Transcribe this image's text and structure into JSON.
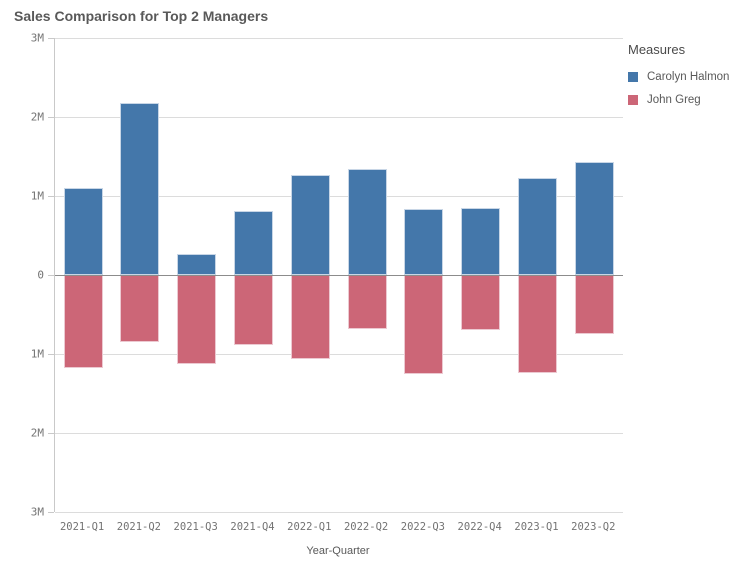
{
  "title": "Sales Comparison for Top 2 Managers",
  "legend": {
    "title": "Measures",
    "items": [
      {
        "label": "Carolyn Halmon",
        "color": "#4477aa"
      },
      {
        "label": "John Greg",
        "color": "#cc6677"
      }
    ]
  },
  "chart_data": {
    "type": "bar",
    "subtype": "diverging-vertical",
    "title": "Sales Comparison for Top 2 Managers",
    "xlabel": "Year-Quarter",
    "ylabel": "",
    "unit": "M",
    "categories": [
      "2021-Q1",
      "2021-Q2",
      "2021-Q3",
      "2021-Q4",
      "2022-Q1",
      "2022-Q2",
      "2022-Q3",
      "2022-Q4",
      "2023-Q1",
      "2023-Q2"
    ],
    "series": [
      {
        "name": "Carolyn Halmon",
        "color": "#4477aa",
        "values_millions": [
          1.1,
          2.18,
          0.26,
          0.81,
          1.27,
          1.34,
          0.84,
          0.85,
          1.23,
          1.43
        ]
      },
      {
        "name": "John Greg",
        "color": "#cc6677",
        "values_millions": [
          -1.18,
          -0.85,
          -1.13,
          -0.89,
          -1.06,
          -0.68,
          -1.25,
          -0.7,
          -1.24,
          -0.75
        ]
      }
    ],
    "ylim_millions": [
      -3,
      3
    ],
    "y_ticks_millions": [
      3,
      2,
      1,
      0,
      -1,
      -2,
      -3
    ],
    "y_tick_labels": [
      "3M",
      "2M",
      "1M",
      "0",
      "1M",
      "2M",
      "3M"
    ],
    "grid": true,
    "legend_position": "right",
    "zero_line": true
  }
}
